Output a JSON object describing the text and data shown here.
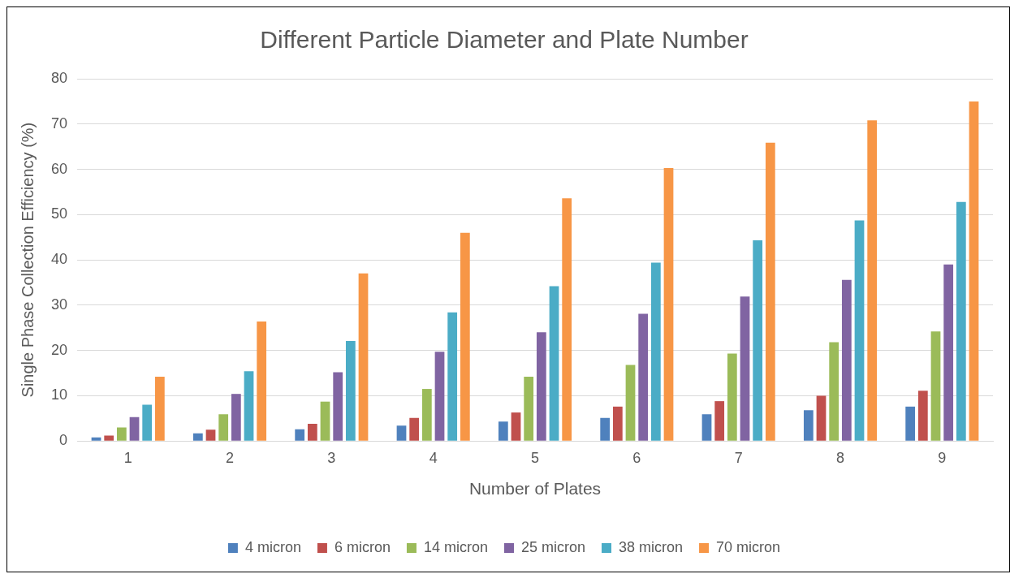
{
  "chart_data": {
    "type": "bar",
    "title": "Different Particle Diameter and Plate Number",
    "xlabel": "Number of Plates",
    "ylabel": "Single Phase Collection Efficiency (%)",
    "categories": [
      "1",
      "2",
      "3",
      "4",
      "5",
      "6",
      "7",
      "8",
      "9"
    ],
    "series": [
      {
        "name": "4 micron",
        "color": "#4f81bd",
        "values": [
          0.8,
          1.7,
          2.6,
          3.4,
          4.3,
          5.1,
          5.9,
          6.8,
          7.6
        ]
      },
      {
        "name": "6 micron",
        "color": "#c0504d",
        "values": [
          1.2,
          2.5,
          3.8,
          5.1,
          6.3,
          7.6,
          8.8,
          10,
          11.1
        ]
      },
      {
        "name": "14 micron",
        "color": "#9bbb59",
        "values": [
          3.0,
          5.9,
          8.7,
          11.5,
          14.2,
          16.8,
          19.3,
          21.8,
          24.2
        ]
      },
      {
        "name": "25 micron",
        "color": "#8064a2",
        "values": [
          5.3,
          10.4,
          15.2,
          19.7,
          24.0,
          28.1,
          31.9,
          35.6,
          39.0
        ]
      },
      {
        "name": "38 micron",
        "color": "#4bacc6",
        "values": [
          8.0,
          15.4,
          22.1,
          28.4,
          34.2,
          39.4,
          44.3,
          48.7,
          52.8
        ]
      },
      {
        "name": "70 micron",
        "color": "#f79646",
        "values": [
          14.2,
          26.4,
          37.0,
          46.0,
          53.6,
          60.3,
          65.9,
          70.8,
          75.0
        ]
      }
    ],
    "ylim": [
      0,
      80
    ],
    "yticks": [
      0,
      10,
      20,
      30,
      40,
      50,
      60,
      70,
      80
    ],
    "grid": "y",
    "legend": "bottom"
  }
}
